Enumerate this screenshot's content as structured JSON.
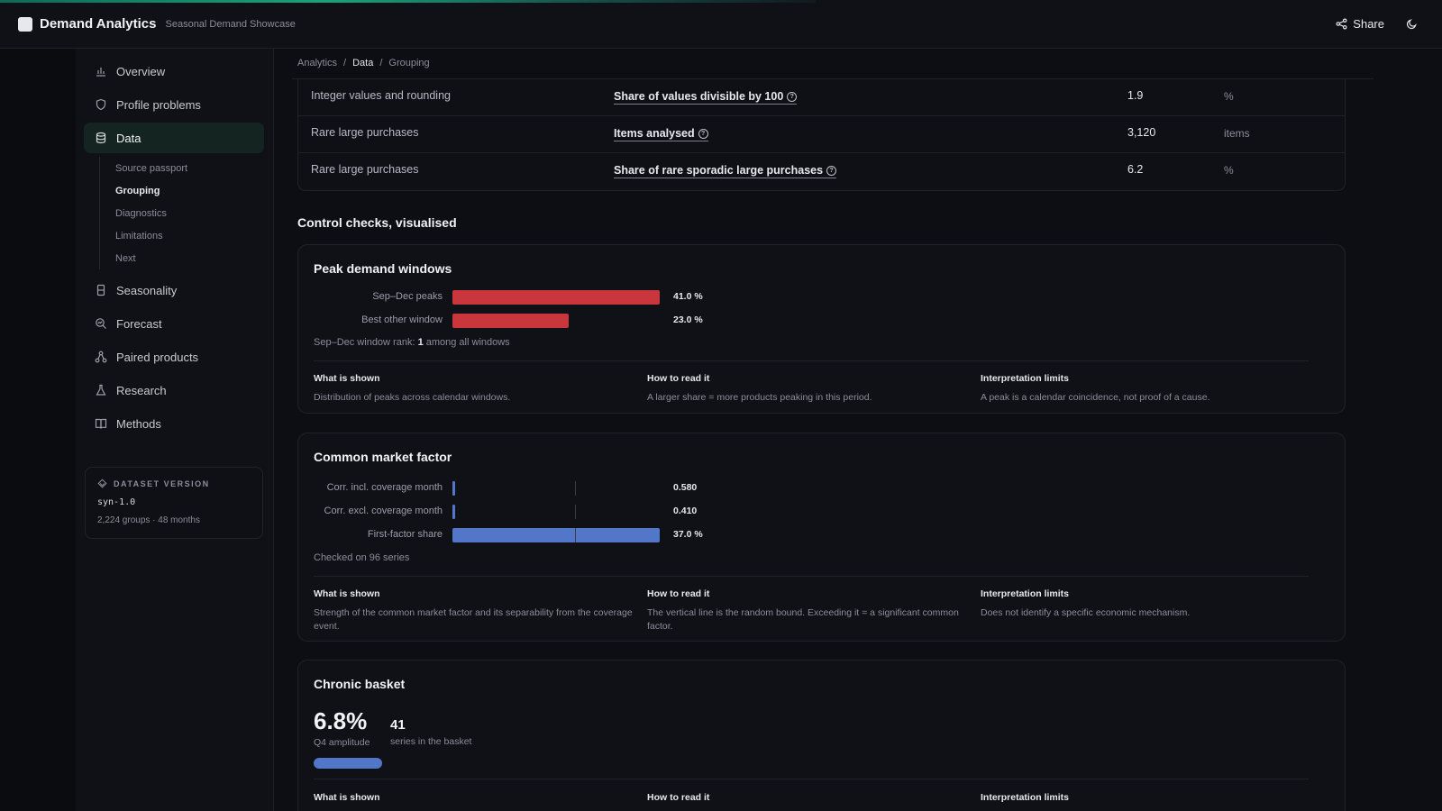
{
  "header": {
    "app_title": "Demand Analytics",
    "subtitle": "Seasonal Demand Showcase",
    "share_label": "Share"
  },
  "sidebar": {
    "items": [
      {
        "label": "Overview",
        "icon": "bar-chart-icon"
      },
      {
        "label": "Profile problems",
        "icon": "shield-icon"
      },
      {
        "label": "Data",
        "icon": "database-icon",
        "active": true
      },
      {
        "label": "Seasonality",
        "icon": "hourglass-icon"
      },
      {
        "label": "Forecast",
        "icon": "search-chart-icon"
      },
      {
        "label": "Paired products",
        "icon": "network-icon"
      },
      {
        "label": "Research",
        "icon": "flask-icon"
      },
      {
        "label": "Methods",
        "icon": "book-icon"
      }
    ],
    "subitems": [
      "Source passport",
      "Grouping",
      "Diagnostics",
      "Limitations",
      "Next"
    ],
    "active_subitem": "Grouping",
    "dataset": {
      "label": "DATASET VERSION",
      "version": "syn-1.0",
      "meta": "2,224 groups · 48 months"
    }
  },
  "breadcrumb": [
    "Analytics",
    "Data",
    "Grouping"
  ],
  "table": {
    "rows": [
      {
        "group": "Integer values and rounding",
        "metric": "Share of values divisible by 100",
        "value": "1.9",
        "unit": "%"
      },
      {
        "group": "Rare large purchases",
        "metric": "Items analysed",
        "value": "3,120",
        "unit": "items"
      },
      {
        "group": "Rare large purchases",
        "metric": "Share of rare sporadic large purchases",
        "value": "6.2",
        "unit": "%"
      }
    ]
  },
  "section_title": "Control checks, visualised",
  "peak": {
    "title": "Peak demand windows",
    "bars": [
      {
        "label": "Sep–Dec peaks",
        "value": 41.0,
        "display": "41.0 %"
      },
      {
        "label": "Best other window",
        "value": 23.0,
        "display": "23.0 %"
      }
    ],
    "bar_color": "#c9363c",
    "note_prefix": "Sep–Dec window rank: ",
    "note_rank": "1",
    "note_suffix": " among all windows",
    "explain": [
      {
        "h": "What is shown",
        "t": "Distribution of peaks across calendar windows."
      },
      {
        "h": "How to read it",
        "t": "A larger share = more products peaking in this period."
      },
      {
        "h": "Interpretation limits",
        "t": "A peak is a calendar coincidence, not proof of a cause."
      }
    ]
  },
  "factor": {
    "title": "Common market factor",
    "bars": [
      {
        "label": "Corr. incl. coverage month",
        "value": 0.58,
        "display": "0.580"
      },
      {
        "label": "Corr. excl. coverage month",
        "value": 0.41,
        "display": "0.410"
      },
      {
        "label": "First-factor share",
        "value": 37.0,
        "display": "37.0 %"
      }
    ],
    "bar_color": "#5377c8",
    "note": "Checked on 96 series",
    "explain": [
      {
        "h": "What is shown",
        "t": "Strength of the common market factor and its separability from the coverage event."
      },
      {
        "h": "How to read it",
        "t": "The vertical line is the random bound. Exceeding it = a significant common factor."
      },
      {
        "h": "Interpretation limits",
        "t": "Does not identify a specific economic mechanism."
      }
    ]
  },
  "basket": {
    "title": "Chronic basket",
    "amplitude": "6.8%",
    "amplitude_caption": "Q4 amplitude",
    "series_count": "41",
    "series_caption": "series in the basket",
    "explain_headers": [
      "What is shown",
      "How to read it",
      "Interpretation limits"
    ]
  }
}
